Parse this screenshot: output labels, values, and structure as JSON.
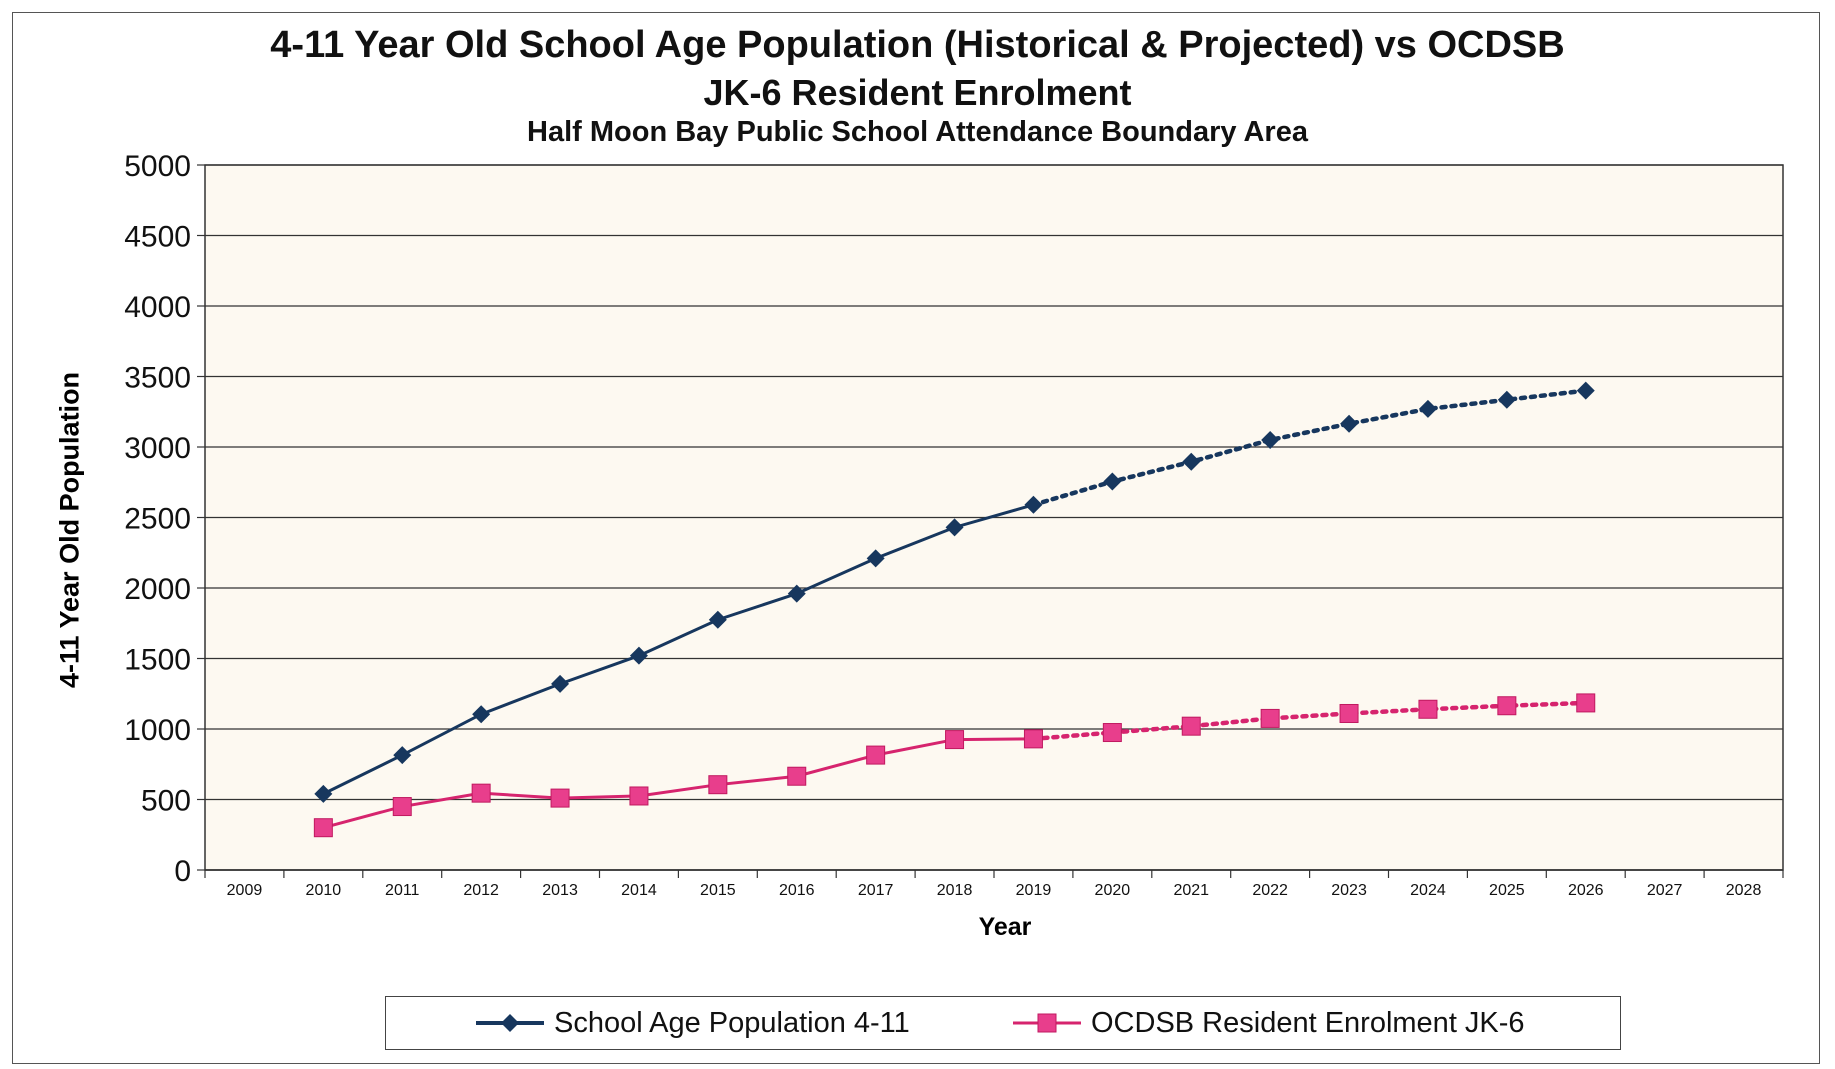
{
  "chart_data": {
    "type": "line",
    "title": "4-11 Year Old School Age Population (Historical & Projected) vs OCDSB",
    "title_line2": "JK-6 Resident Enrolment",
    "subtitle": "Half Moon Bay Public School Attendance Boundary Area",
    "xlabel": "Year",
    "ylabel": "4-11 Year Old Population",
    "ylim": [
      0,
      5000
    ],
    "yticks": [
      0,
      500,
      1000,
      1500,
      2000,
      2500,
      3000,
      3500,
      4000,
      4500,
      5000
    ],
    "categories": [
      "2009",
      "2010",
      "2011",
      "2012",
      "2013",
      "2014",
      "2015",
      "2016",
      "2017",
      "2018",
      "2019",
      "2020",
      "2021",
      "2022",
      "2023",
      "2024",
      "2025",
      "2026",
      "2027",
      "2028"
    ],
    "grid": true,
    "legend_position": "bottom",
    "projection_starts_at": "2019",
    "series": [
      {
        "name": "School Age Population 4-11",
        "color": "#17375e",
        "marker": "diamond",
        "values": [
          null,
          540,
          815,
          1105,
          1320,
          1520,
          1775,
          1960,
          2210,
          2430,
          2590,
          2755,
          2895,
          3050,
          3165,
          3270,
          3335,
          3400,
          null,
          null
        ]
      },
      {
        "name": "OCDSB Resident Enrolment JK-6",
        "color": "#d6246e",
        "marker": "square",
        "values": [
          null,
          300,
          450,
          545,
          510,
          525,
          605,
          665,
          815,
          925,
          930,
          975,
          1020,
          1075,
          1110,
          1140,
          1165,
          1185,
          null,
          null
        ]
      }
    ]
  }
}
